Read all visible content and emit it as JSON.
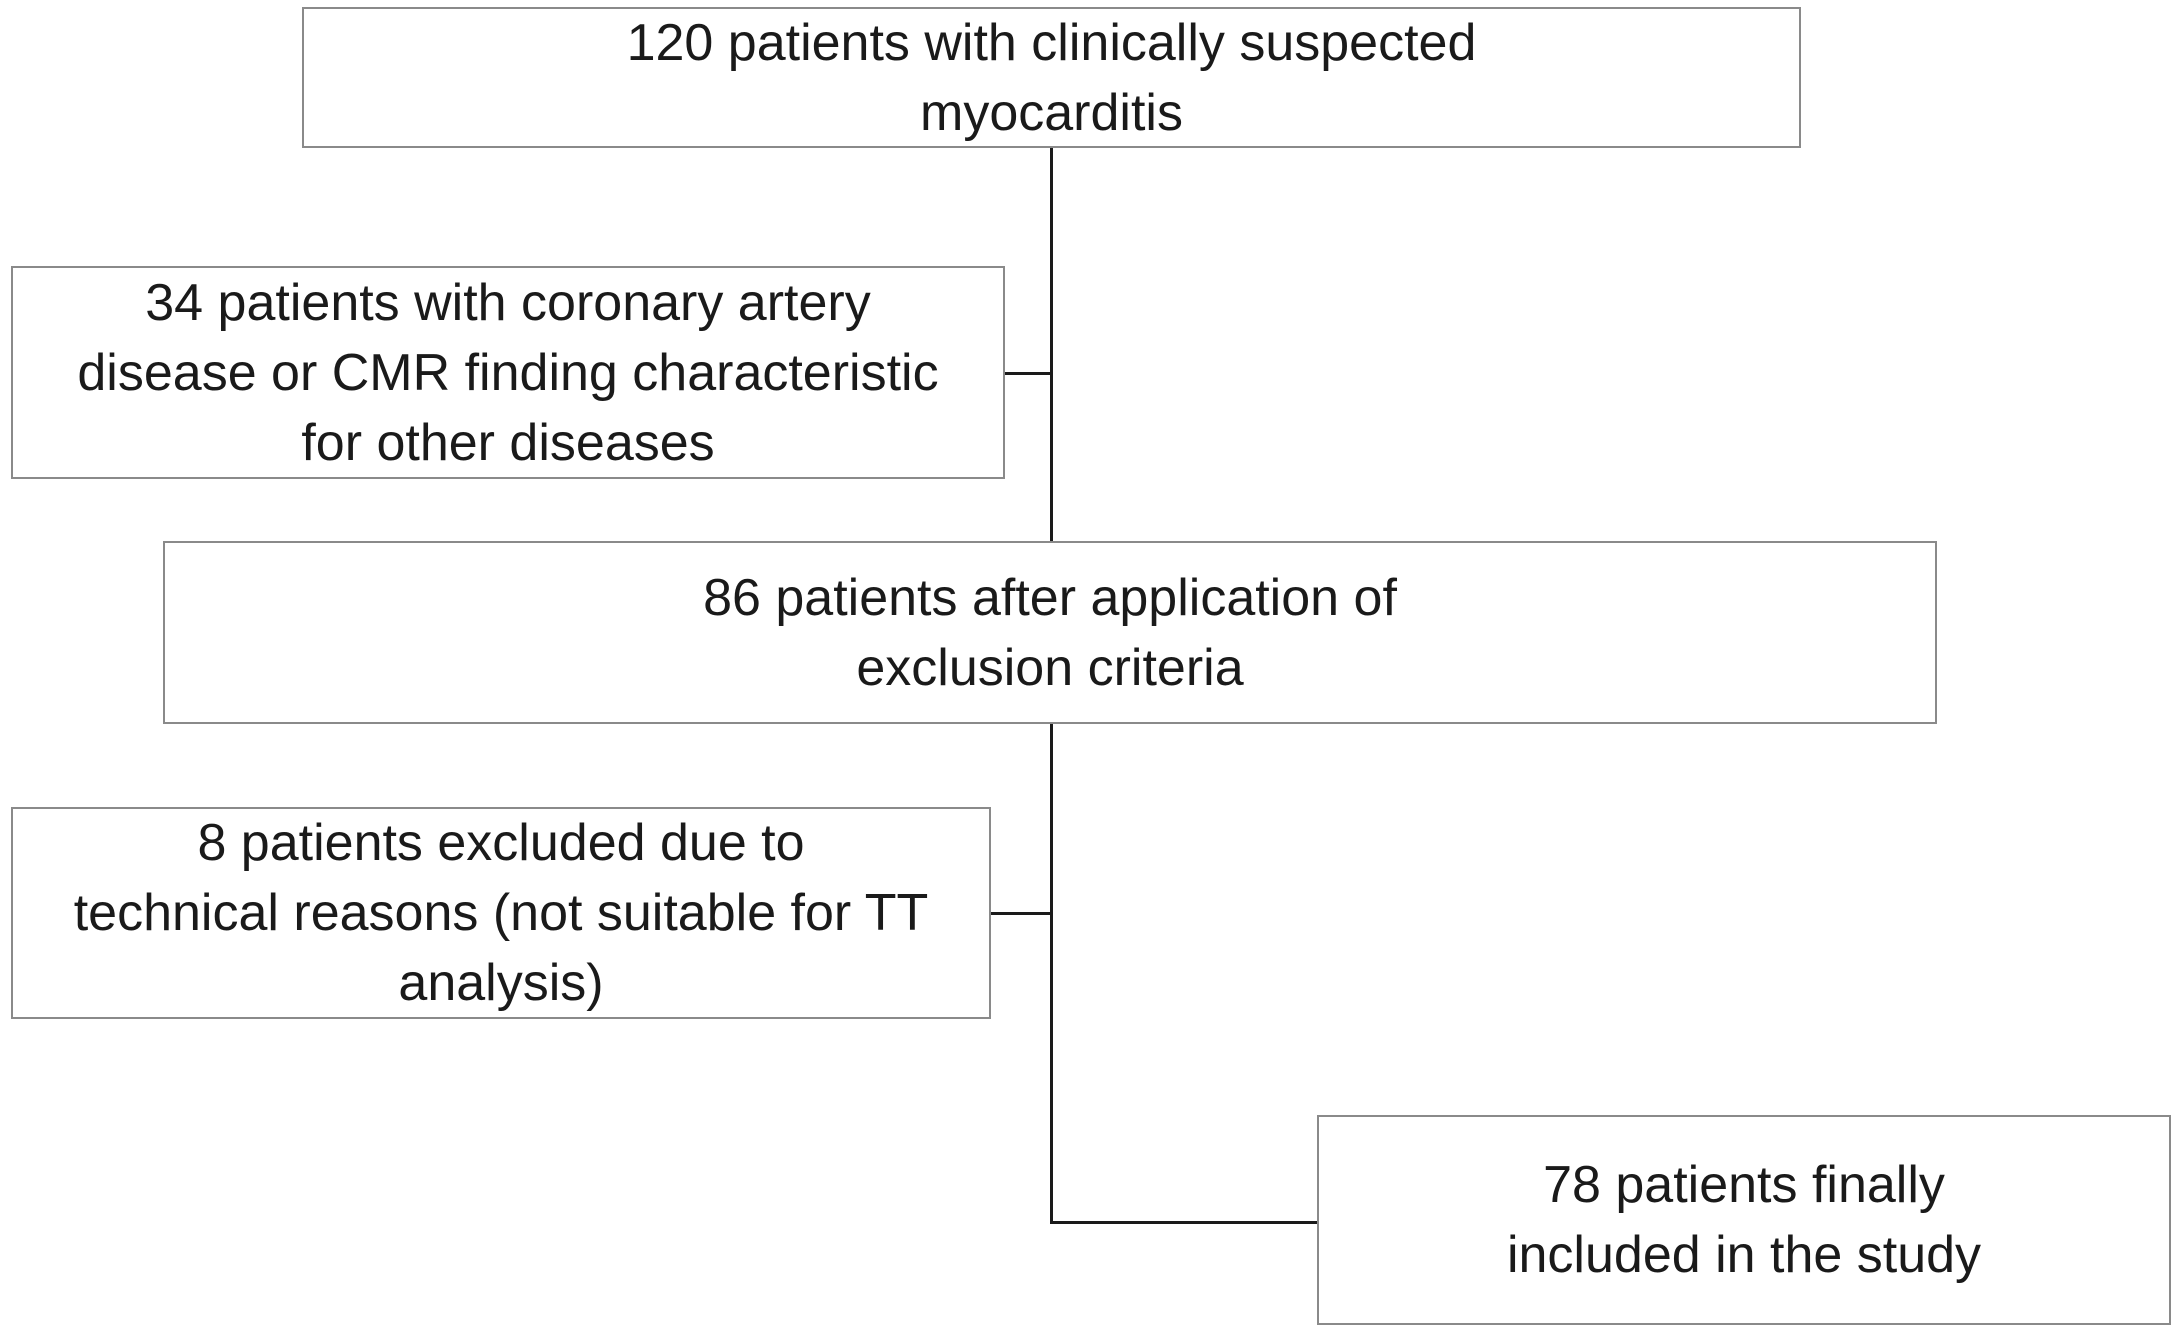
{
  "nodes": [
    {
      "lines": [
        "120 patients with clinically suspected",
        "myocarditis"
      ]
    },
    {
      "lines": [
        "34 patients with coronary artery",
        "disease or CMR finding characteristic",
        "for other diseases"
      ]
    },
    {
      "lines": [
        "86 patients after application of",
        "exclusion criteria"
      ]
    },
    {
      "lines": [
        "8 patients excluded due to",
        "technical reasons (not suitable for TT",
        "analysis)"
      ]
    },
    {
      "lines": [
        "78 patients finally",
        "included in the study"
      ]
    }
  ]
}
